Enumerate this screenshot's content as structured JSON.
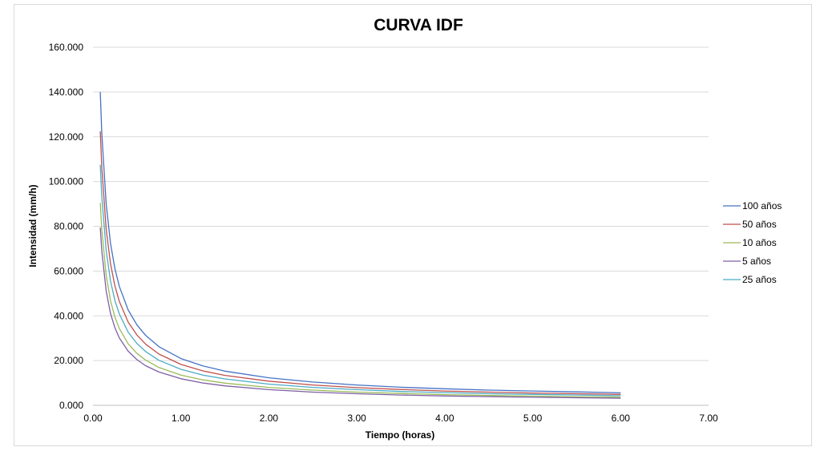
{
  "chart_data": {
    "type": "line",
    "title": "CURVA IDF",
    "xlabel": "Tiempo (horas)",
    "ylabel": "Intensidad (mm/h)",
    "xlim": [
      0,
      7
    ],
    "ylim": [
      0,
      160
    ],
    "x_ticks": [
      "0.00",
      "1.00",
      "2.00",
      "3.00",
      "4.00",
      "5.00",
      "6.00",
      "7.00"
    ],
    "y_ticks": [
      "0.000",
      "20.000",
      "40.000",
      "60.000",
      "80.000",
      "100.000",
      "120.000",
      "140.000",
      "160.000"
    ],
    "grid": "horizontal",
    "legend": "right",
    "x": [
      0.083,
      0.1,
      0.15,
      0.2,
      0.25,
      0.3,
      0.4,
      0.5,
      0.6,
      0.75,
      1.0,
      1.25,
      1.5,
      2.0,
      2.5,
      3.0,
      3.5,
      4.0,
      4.5,
      5.0,
      5.5,
      6.0
    ],
    "series": [
      {
        "name": "100 años",
        "color": "#4472c4",
        "values": [
          140,
          121.4,
          89.8,
          72.3,
          61.0,
          53.1,
          42.6,
          35.9,
          31.2,
          26.2,
          20.9,
          17.6,
          15.3,
          12.3,
          10.4,
          9.1,
          8.1,
          7.4,
          6.8,
          6.4,
          6.0,
          5.6
        ]
      },
      {
        "name": "50 años",
        "color": "#c0504d",
        "values": [
          122.5,
          106.2,
          78.6,
          63.2,
          53.3,
          46.4,
          37.2,
          31.4,
          27.3,
          22.9,
          18.3,
          15.4,
          13.4,
          10.8,
          9.1,
          7.9,
          7.1,
          6.4,
          5.9,
          5.5,
          5.2,
          4.9
        ]
      },
      {
        "name": "10 años",
        "color": "#9bbb59",
        "values": [
          90.5,
          78.5,
          58.0,
          46.7,
          39.4,
          34.3,
          27.5,
          23.2,
          20.2,
          16.9,
          13.5,
          11.4,
          9.9,
          8.0,
          6.8,
          5.9,
          5.3,
          4.8,
          4.4,
          4.1,
          3.8,
          3.6
        ]
      },
      {
        "name": "5 años",
        "color": "#7f5fa6",
        "values": [
          79.5,
          68.9,
          51.0,
          41.0,
          34.6,
          30.1,
          24.2,
          20.4,
          17.7,
          14.9,
          11.9,
          10.0,
          8.7,
          7.0,
          5.9,
          5.2,
          4.6,
          4.2,
          3.9,
          3.6,
          3.4,
          3.2
        ]
      },
      {
        "name": "25 años",
        "color": "#4bacc6",
        "values": [
          107.5,
          93.2,
          69.0,
          55.5,
          46.8,
          40.8,
          32.7,
          27.6,
          24.0,
          20.1,
          16.1,
          13.5,
          11.8,
          9.5,
          8.0,
          7.0,
          6.2,
          5.7,
          5.2,
          4.9,
          4.6,
          4.3
        ]
      }
    ]
  }
}
